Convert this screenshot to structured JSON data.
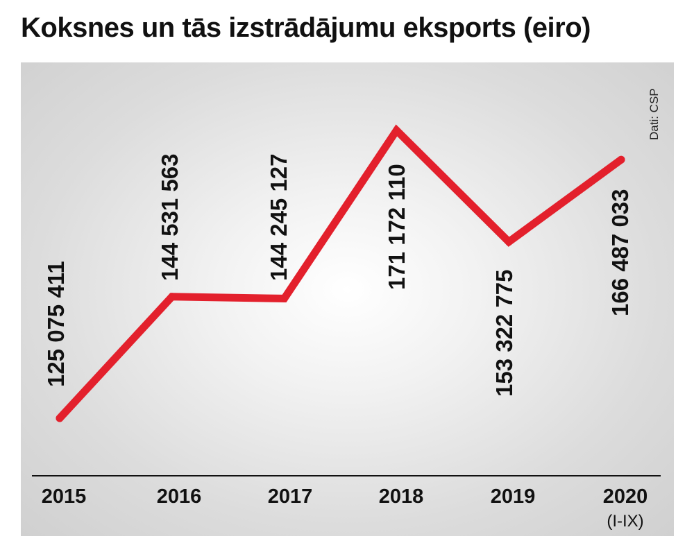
{
  "chart_data": {
    "type": "line",
    "title": "Koksnes un tās izstrādājumu eksports (eiro)",
    "source": "Dati: CSP",
    "categories": [
      "2015",
      "2016",
      "2017",
      "2018",
      "2019",
      "2020"
    ],
    "category_sublabels": [
      "",
      "",
      "",
      "",
      "",
      "(I-IX)"
    ],
    "values": [
      125075411,
      144531563,
      144245127,
      171172110,
      153322775,
      166487033
    ],
    "value_labels": [
      "125 075 411",
      "144 531 563",
      "144 245 127",
      "171 172 110",
      "153 322 775",
      "166 487 033"
    ],
    "grid": false,
    "legend": "none"
  },
  "colors": {
    "line": "#e3202c",
    "text": "#111111",
    "axis": "#111111"
  }
}
